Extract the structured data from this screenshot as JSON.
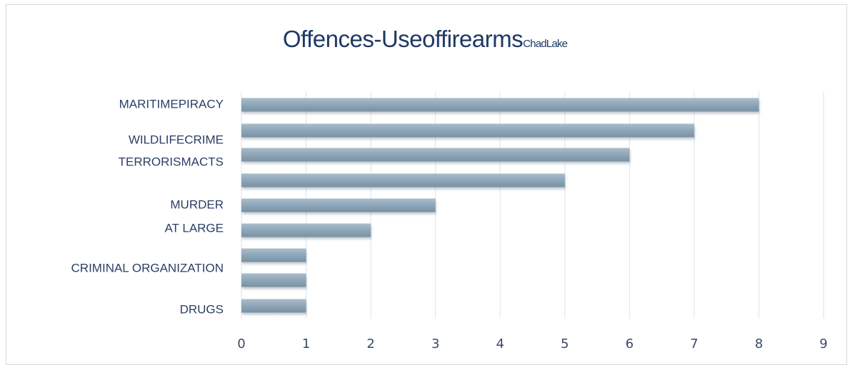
{
  "chart_data": {
    "type": "bar",
    "orientation": "horizontal",
    "title": "Offences-Useoffirearms",
    "subtitle": "ChadLake",
    "categories": [
      "MARITIMEPIRACY",
      "WILDLIFECRIME",
      "TERRORISMACTS",
      "",
      "MURDER",
      "AT LARGE",
      "",
      "CRIMINAL ORGANIZATION",
      "DRUGS"
    ],
    "values": [
      8,
      7,
      6,
      5,
      3,
      2,
      1,
      1,
      1
    ],
    "xlim": [
      0,
      9
    ],
    "xticks": [
      "0",
      "1",
      "2",
      "3",
      "4",
      "5",
      "6",
      "7",
      "8",
      "9"
    ],
    "grid": true,
    "bar_color": "#8da5b6"
  }
}
